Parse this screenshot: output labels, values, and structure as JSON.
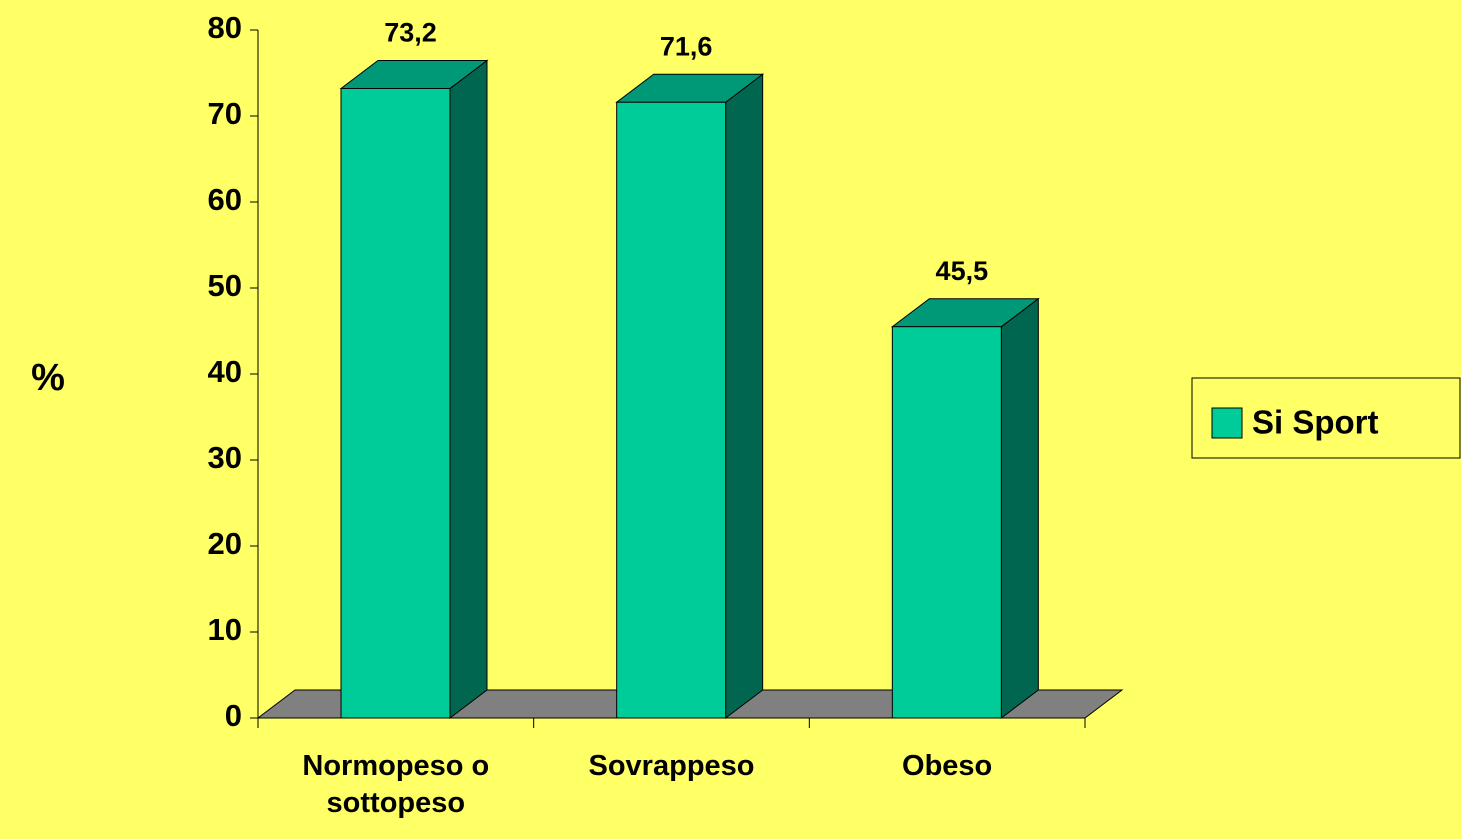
{
  "chart_data": {
    "type": "bar3d",
    "categories": [
      "Normopeso o sottopeso",
      "Sovrappeso",
      "Obeso"
    ],
    "series": [
      {
        "name": "Si Sport",
        "color": "#00cc99",
        "values": [
          73.2,
          71.6,
          45.5
        ],
        "value_labels": [
          "73,2",
          "71,6",
          "45,5"
        ]
      }
    ],
    "ylabel": "%",
    "ylim": [
      0,
      80
    ],
    "yticks": [
      0,
      10,
      20,
      30,
      40,
      50,
      60,
      70,
      80
    ],
    "legend": "right"
  }
}
